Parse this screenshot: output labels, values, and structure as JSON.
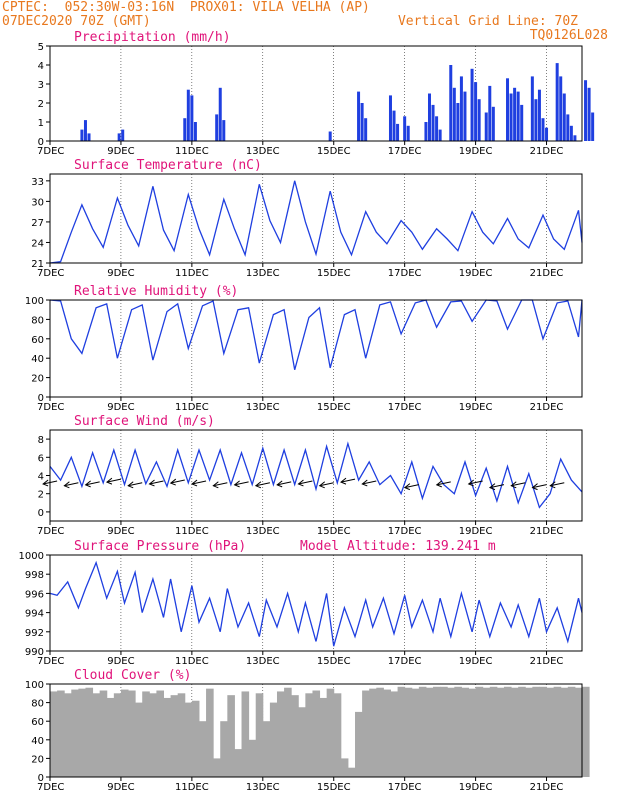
{
  "header": {
    "line1_left": "CPTEC:  052:30W-03:16N  PROX01: VILA VELHA (AP)",
    "line2_left": "07DEC2020 70Z (GMT)",
    "line2_right": "Vertical Grid Line: 70Z",
    "line3_right": "TQ0126L028"
  },
  "colors": {
    "header": "#e8781e",
    "title": "#e0147a",
    "series": "#1f3fe0",
    "cloud": "#a8a8a8",
    "text": "#000000"
  },
  "x_ticks": [
    "7DEC",
    "9DEC",
    "11DEC",
    "13DEC",
    "15DEC",
    "17DEC",
    "19DEC",
    "21DEC"
  ],
  "chart_data": [
    {
      "type": "bar",
      "title": "Precipitation (mm/h)",
      "ylim": [
        0,
        5
      ],
      "yticks": [
        0,
        1,
        2,
        3,
        4,
        5
      ],
      "x": [
        7.9,
        8.0,
        8.1,
        8.95,
        9.05,
        10.8,
        10.9,
        11.0,
        11.1,
        11.7,
        11.8,
        11.9,
        14.9,
        15.7,
        15.8,
        15.9,
        16.6,
        16.7,
        16.8,
        17.0,
        17.1,
        17.6,
        17.7,
        17.8,
        17.9,
        18.0,
        18.3,
        18.4,
        18.5,
        18.6,
        18.7,
        18.9,
        19.0,
        19.1,
        19.3,
        19.4,
        19.5,
        19.9,
        20.0,
        20.1,
        20.2,
        20.3,
        20.6,
        20.7,
        20.8,
        20.9,
        21.0,
        21.3,
        21.4,
        21.5,
        21.6,
        21.7,
        21.8,
        22.1,
        22.2,
        22.3
      ],
      "values": [
        0.6,
        1.1,
        0.4,
        0.4,
        0.6,
        1.2,
        2.7,
        2.4,
        1.0,
        1.4,
        2.8,
        1.1,
        0.5,
        2.6,
        2.0,
        1.2,
        2.4,
        1.6,
        0.9,
        1.3,
        0.8,
        1.0,
        2.5,
        1.9,
        1.3,
        0.6,
        4.0,
        2.8,
        2.0,
        3.4,
        2.6,
        3.8,
        3.1,
        2.2,
        1.5,
        2.9,
        1.8,
        3.3,
        2.5,
        2.8,
        2.6,
        1.9,
        3.4,
        2.2,
        2.7,
        1.2,
        0.7,
        4.1,
        3.4,
        2.5,
        1.4,
        0.8,
        0.3,
        3.2,
        2.8,
        1.5
      ]
    },
    {
      "type": "line",
      "title": "Surface Temperature (nC)",
      "ylim": [
        21,
        34
      ],
      "yticks": [
        21,
        24,
        27,
        30,
        33
      ],
      "x": [
        7.0,
        7.3,
        7.6,
        7.9,
        8.2,
        8.5,
        8.9,
        9.2,
        9.5,
        9.9,
        10.2,
        10.5,
        10.9,
        11.2,
        11.5,
        11.9,
        12.2,
        12.5,
        12.9,
        13.2,
        13.5,
        13.9,
        14.2,
        14.5,
        14.9,
        15.2,
        15.5,
        15.9,
        16.2,
        16.5,
        16.9,
        17.2,
        17.5,
        17.9,
        18.2,
        18.5,
        18.9,
        19.2,
        19.5,
        19.9,
        20.2,
        20.5,
        20.9,
        21.2,
        21.5,
        21.9,
        22.0
      ],
      "values": [
        21.0,
        21.2,
        25.5,
        29.5,
        26.0,
        23.3,
        30.5,
        26.5,
        23.5,
        32.2,
        25.8,
        22.8,
        31.0,
        26.0,
        22.2,
        30.3,
        26.0,
        22.2,
        32.5,
        27.2,
        24.0,
        33.0,
        27.0,
        22.3,
        31.5,
        25.5,
        22.2,
        28.5,
        25.5,
        23.8,
        27.2,
        25.5,
        23.0,
        26.0,
        24.5,
        22.8,
        28.5,
        25.5,
        23.8,
        27.5,
        24.5,
        23.2,
        28.0,
        24.5,
        23.0,
        28.7,
        24.0
      ]
    },
    {
      "type": "line",
      "title": "Relative Humidity (%)",
      "ylim": [
        0,
        100
      ],
      "yticks": [
        0,
        20,
        40,
        60,
        80,
        100
      ],
      "x": [
        7.0,
        7.3,
        7.6,
        7.9,
        8.3,
        8.6,
        8.9,
        9.3,
        9.6,
        9.9,
        10.3,
        10.6,
        10.9,
        11.3,
        11.6,
        11.9,
        12.3,
        12.6,
        12.9,
        13.3,
        13.6,
        13.9,
        14.3,
        14.6,
        14.9,
        15.3,
        15.6,
        15.9,
        16.3,
        16.6,
        16.9,
        17.3,
        17.6,
        17.9,
        18.3,
        18.6,
        18.9,
        19.3,
        19.6,
        19.9,
        20.3,
        20.6,
        20.9,
        21.3,
        21.6,
        21.9,
        22.0
      ],
      "values": [
        100,
        99,
        60,
        45,
        92,
        96,
        40,
        90,
        95,
        38,
        88,
        96,
        50,
        94,
        99,
        45,
        90,
        92,
        35,
        85,
        90,
        28,
        82,
        92,
        30,
        85,
        90,
        40,
        95,
        98,
        65,
        97,
        100,
        72,
        98,
        99,
        78,
        100,
        99,
        70,
        100,
        100,
        60,
        97,
        99,
        62,
        100
      ]
    },
    {
      "type": "line",
      "title": "Surface Wind (m/s)",
      "ylim": [
        -1,
        9
      ],
      "yticks": [
        0,
        2,
        4,
        6,
        8
      ],
      "x": [
        7.0,
        7.3,
        7.6,
        7.9,
        8.2,
        8.5,
        8.8,
        9.1,
        9.4,
        9.7,
        10.0,
        10.3,
        10.6,
        10.9,
        11.2,
        11.5,
        11.8,
        12.1,
        12.4,
        12.7,
        13.0,
        13.3,
        13.6,
        13.9,
        14.2,
        14.5,
        14.8,
        15.1,
        15.4,
        15.7,
        16.0,
        16.3,
        16.6,
        16.9,
        17.2,
        17.5,
        17.8,
        18.1,
        18.4,
        18.7,
        19.0,
        19.3,
        19.6,
        19.9,
        20.2,
        20.5,
        20.8,
        21.1,
        21.4,
        21.7,
        22.0
      ],
      "values": [
        5.0,
        3.5,
        6.0,
        2.8,
        6.5,
        3.2,
        6.8,
        3.0,
        6.8,
        3.1,
        5.5,
        2.8,
        6.8,
        3.2,
        6.8,
        3.5,
        6.8,
        3.0,
        6.5,
        3.0,
        7.0,
        3.0,
        6.8,
        3.0,
        6.8,
        2.5,
        7.2,
        3.2,
        7.5,
        3.5,
        5.5,
        3.0,
        4.0,
        2.0,
        5.5,
        1.5,
        5.0,
        3.0,
        2.0,
        5.5,
        1.8,
        4.8,
        1.2,
        5.0,
        1.0,
        4.2,
        0.5,
        2.0,
        5.8,
        3.5,
        2.2
      ],
      "arrows_x": [
        7.2,
        7.8,
        8.4,
        9.0,
        9.6,
        10.2,
        10.8,
        11.4,
        12.0,
        12.6,
        13.2,
        13.8,
        14.4,
        15.0,
        15.6,
        16.2,
        17.4,
        18.3,
        19.2,
        19.8,
        20.4,
        21.0,
        21.5
      ],
      "arrows_y": [
        3.4,
        3.2,
        3.3,
        3.6,
        3.2,
        3.4,
        3.5,
        3.4,
        3.2,
        3.3,
        3.2,
        3.3,
        3.4,
        3.2,
        3.6,
        3.4,
        3.0,
        3.3,
        3.4,
        3.0,
        3.2,
        3.0,
        3.2
      ]
    },
    {
      "type": "line",
      "title": "Surface Pressure (hPa)",
      "annotation": "Model Altitude: 139.241 m",
      "ylim": [
        990,
        1000
      ],
      "yticks": [
        990,
        992,
        994,
        996,
        998,
        1000
      ],
      "x": [
        7.0,
        7.2,
        7.5,
        7.8,
        8.0,
        8.3,
        8.6,
        8.9,
        9.1,
        9.4,
        9.6,
        9.9,
        10.2,
        10.4,
        10.7,
        11.0,
        11.2,
        11.5,
        11.8,
        12.0,
        12.3,
        12.6,
        12.9,
        13.1,
        13.4,
        13.7,
        14.0,
        14.2,
        14.5,
        14.8,
        15.0,
        15.3,
        15.6,
        15.9,
        16.1,
        16.4,
        16.7,
        17.0,
        17.2,
        17.5,
        17.8,
        18.0,
        18.3,
        18.6,
        18.9,
        19.1,
        19.4,
        19.7,
        20.0,
        20.2,
        20.5,
        20.8,
        21.0,
        21.3,
        21.6,
        21.9,
        22.0
      ],
      "values": [
        996,
        995.8,
        997.2,
        994.5,
        996.5,
        999.2,
        995.5,
        998.3,
        995.0,
        998.2,
        994.0,
        997.5,
        993.5,
        997.5,
        992.0,
        996.8,
        993.0,
        995.5,
        992.0,
        996.5,
        992.5,
        995.0,
        991.5,
        995.3,
        992.5,
        996.0,
        992.0,
        995.0,
        991.0,
        996.0,
        990.5,
        994.5,
        991.5,
        995.3,
        992.5,
        995.5,
        991.8,
        995.8,
        992.5,
        995.3,
        992.0,
        995.5,
        991.5,
        996.0,
        992.0,
        995.3,
        991.5,
        995.0,
        992.5,
        994.8,
        991.5,
        995.5,
        992.0,
        994.5,
        991.0,
        995.5,
        994.0
      ]
    },
    {
      "type": "area",
      "title": "Cloud Cover (%)",
      "ylim": [
        0,
        100
      ],
      "yticks": [
        0,
        20,
        40,
        60,
        80,
        100
      ],
      "x": [
        7.0,
        7.2,
        7.4,
        7.6,
        7.8,
        8.0,
        8.2,
        8.4,
        8.6,
        8.8,
        9.0,
        9.2,
        9.4,
        9.6,
        9.8,
        10.0,
        10.2,
        10.4,
        10.6,
        10.8,
        11.0,
        11.2,
        11.4,
        11.6,
        11.8,
        12.0,
        12.2,
        12.4,
        12.6,
        12.8,
        13.0,
        13.2,
        13.4,
        13.6,
        13.8,
        14.0,
        14.2,
        14.4,
        14.6,
        14.8,
        15.0,
        15.2,
        15.4,
        15.6,
        15.8,
        16.0,
        16.2,
        16.4,
        16.6,
        16.8,
        17.0,
        17.2,
        17.4,
        17.6,
        17.8,
        18.0,
        18.2,
        18.4,
        18.6,
        18.8,
        19.0,
        19.2,
        19.4,
        19.6,
        19.8,
        20.0,
        20.2,
        20.4,
        20.6,
        20.8,
        21.0,
        21.2,
        21.4,
        21.6,
        21.8,
        22.0
      ],
      "values": [
        92,
        93,
        90,
        94,
        95,
        96,
        90,
        93,
        85,
        90,
        94,
        93,
        80,
        92,
        90,
        93,
        85,
        88,
        90,
        80,
        82,
        60,
        95,
        20,
        60,
        88,
        30,
        92,
        40,
        90,
        60,
        80,
        92,
        96,
        88,
        75,
        90,
        93,
        85,
        95,
        90,
        20,
        10,
        70,
        93,
        95,
        96,
        94,
        92,
        97,
        96,
        95,
        97,
        96,
        97,
        97,
        96,
        97,
        96,
        95,
        97,
        96,
        97,
        96,
        97,
        96,
        97,
        96,
        97,
        97,
        96,
        97,
        96,
        97,
        96,
        97
      ]
    }
  ]
}
